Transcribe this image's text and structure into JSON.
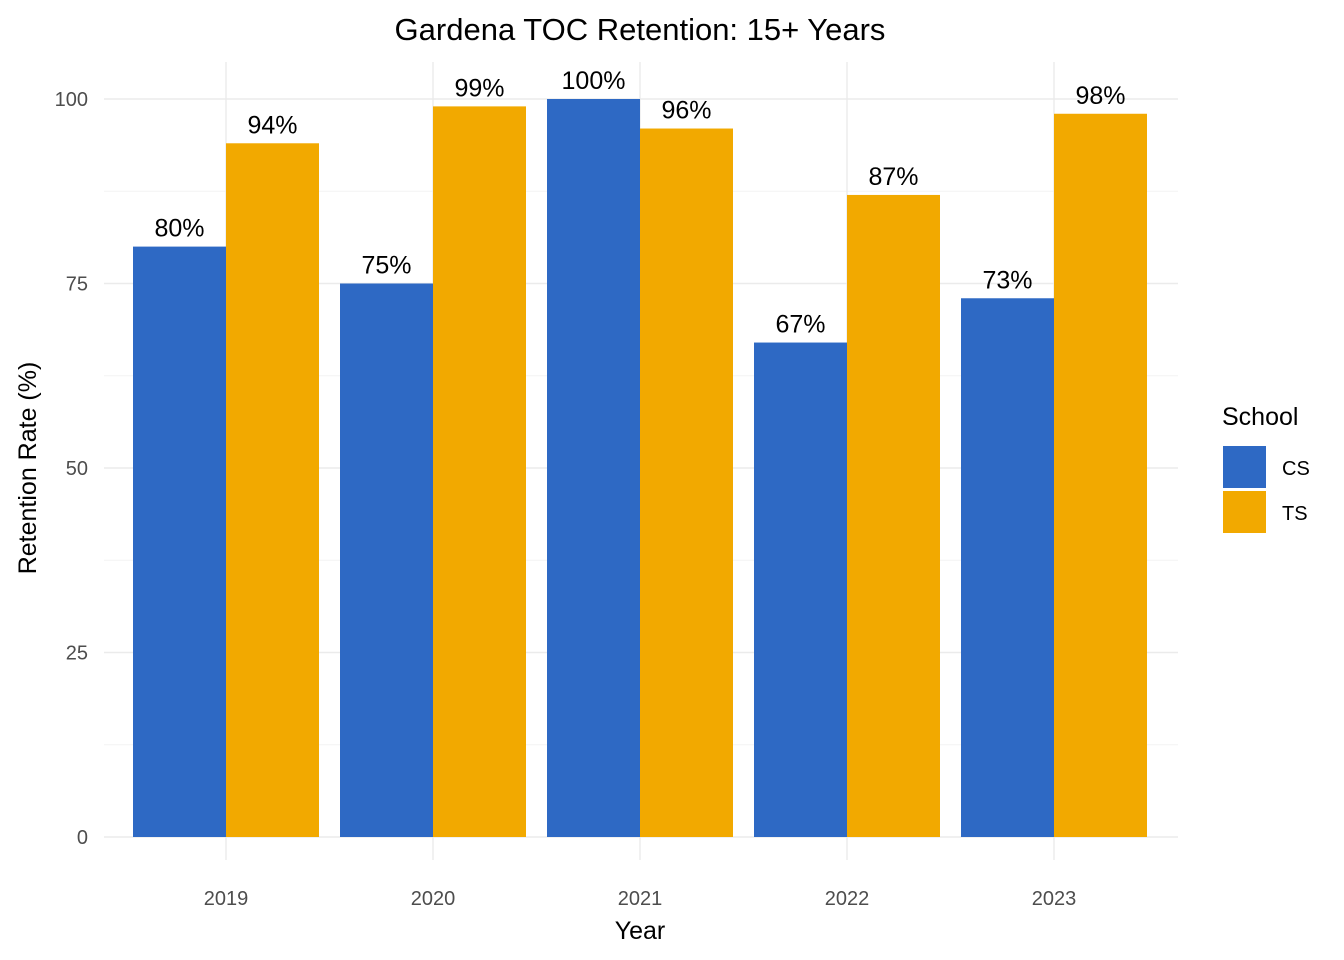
{
  "chart_data": {
    "type": "bar",
    "title": "Gardena TOC Retention: 15+ Years",
    "xlabel": "Year",
    "ylabel": "Retention Rate (%)",
    "categories": [
      "2019",
      "2020",
      "2021",
      "2022",
      "2023"
    ],
    "series": [
      {
        "name": "CS",
        "color": "#2e69c4",
        "values": [
          80,
          75,
          100,
          67,
          73
        ],
        "labels": [
          "80%",
          "75%",
          "100%",
          "67%",
          "73%"
        ]
      },
      {
        "name": "TS",
        "color": "#f2a900",
        "values": [
          94,
          99,
          96,
          87,
          98
        ],
        "labels": [
          "94%",
          "99%",
          "96%",
          "87%",
          "98%"
        ]
      }
    ],
    "ylim": [
      0,
      100
    ],
    "yticks": [
      0,
      25,
      50,
      75,
      100
    ],
    "ytick_labels": [
      "0",
      "25",
      "50",
      "75",
      "100"
    ],
    "grid": true,
    "legend": {
      "title": "School",
      "position": "right"
    }
  }
}
